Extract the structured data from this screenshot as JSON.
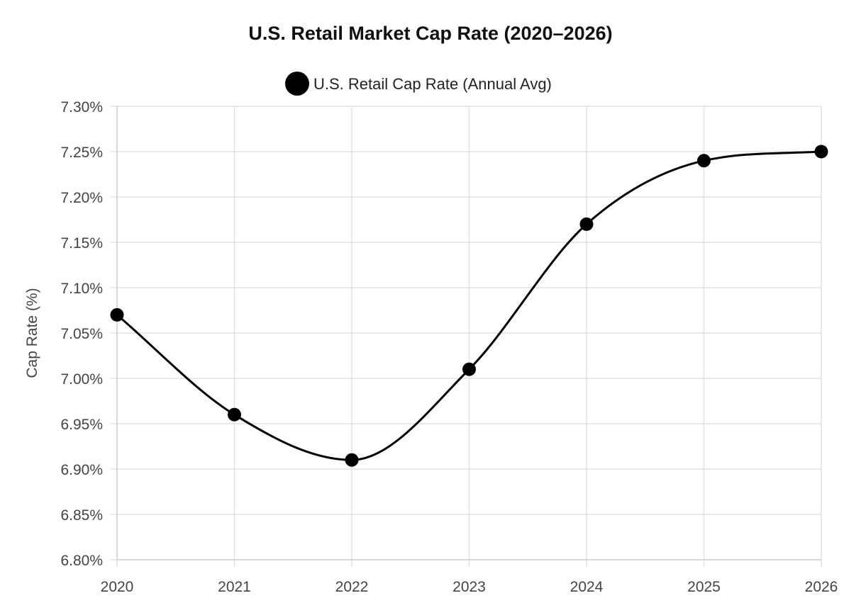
{
  "chart_data": {
    "type": "line",
    "title": "U.S. Retail Market Cap Rate (2020–2026)",
    "xlabel": "",
    "ylabel": "Cap Rate (%)",
    "ylim": [
      6.8,
      7.3
    ],
    "y_step": 0.05,
    "y_tick_suffix": "%",
    "grid": true,
    "legend_position": "top-center",
    "categories": [
      "2020",
      "2021",
      "2022",
      "2023",
      "2024",
      "2025",
      "2026"
    ],
    "series": [
      {
        "name": "U.S. Retail Cap Rate (Annual Avg)",
        "values": [
          7.07,
          6.96,
          6.91,
          7.01,
          7.17,
          7.24,
          7.25
        ],
        "color": "#000000"
      }
    ]
  }
}
